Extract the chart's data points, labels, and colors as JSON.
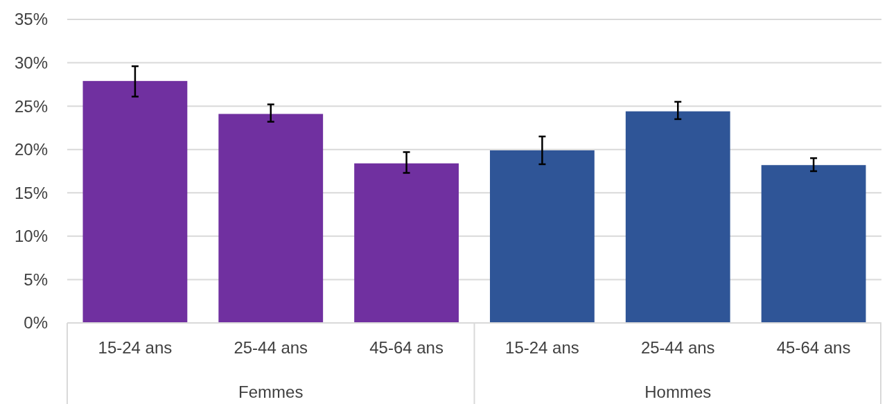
{
  "chart_data": {
    "type": "bar",
    "categories": [
      "15-24 ans",
      "25-44 ans",
      "45-64 ans",
      "15-24 ans",
      "25-44 ans",
      "45-64 ans"
    ],
    "values": [
      27.9,
      24.1,
      18.4,
      19.9,
      24.4,
      18.2
    ],
    "colors": [
      "#7030a0",
      "#7030a0",
      "#7030a0",
      "#2f5597",
      "#2f5597",
      "#2f5597"
    ],
    "errors": [
      [
        26.1,
        29.6
      ],
      [
        23.2,
        25.2
      ],
      [
        17.3,
        19.7
      ],
      [
        18.3,
        21.5
      ],
      [
        23.5,
        25.5
      ],
      [
        17.5,
        19.0
      ]
    ],
    "annotations": [
      "Femmes",
      "Hommes"
    ],
    "ylim": [
      0,
      35
    ],
    "yticks": [
      {
        "value": 0,
        "label": "0%"
      },
      {
        "value": 5,
        "label": "5%"
      },
      {
        "value": 10,
        "label": "10%"
      },
      {
        "value": 15,
        "label": "15%"
      },
      {
        "value": 20,
        "label": "20%"
      },
      {
        "value": 25,
        "label": "25%"
      },
      {
        "value": 30,
        "label": "30%"
      },
      {
        "value": 35,
        "label": "35%"
      }
    ],
    "grid": "y"
  }
}
